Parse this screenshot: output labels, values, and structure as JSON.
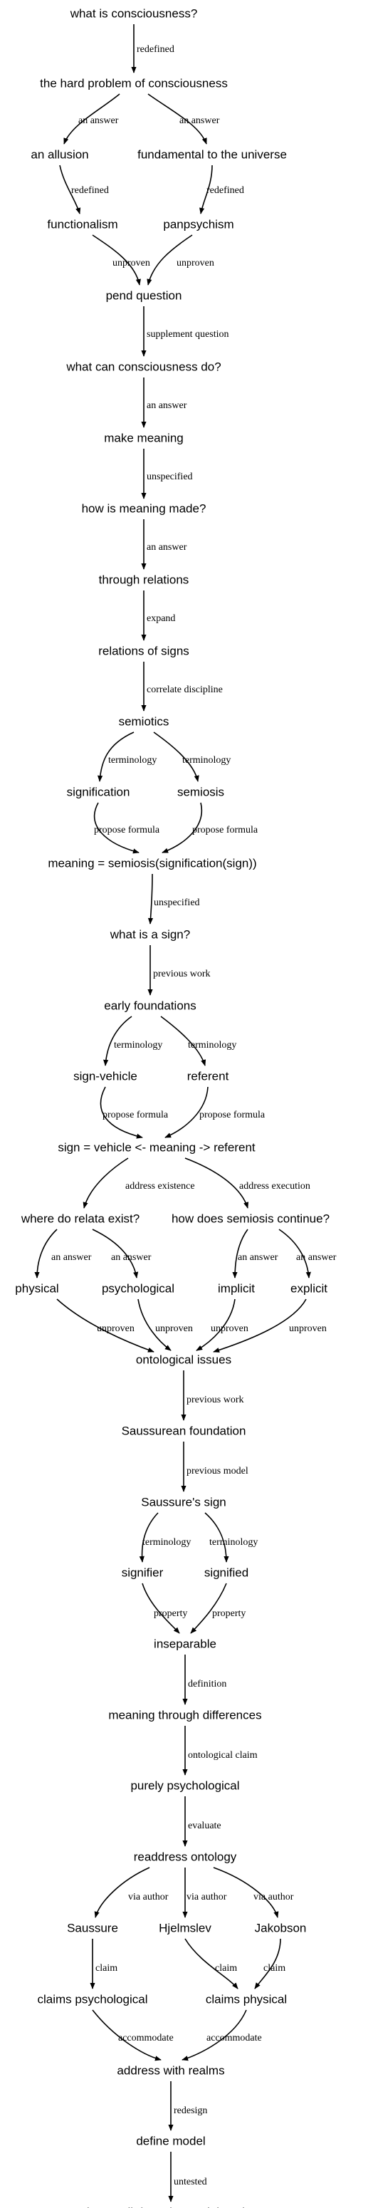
{
  "nodes": {
    "n1": "what is consciousness?",
    "n2": "the hard problem of consciousness",
    "n3": "an allusion",
    "n4": "fundamental to the universe",
    "n5": "functionalism",
    "n6": "panpsychism",
    "n7": "pend question",
    "n8": "what can consciousness do?",
    "n9": "make meaning",
    "n10": "how is meaning made?",
    "n11": "through relations",
    "n12": "relations of signs",
    "n13": "semiotics",
    "n14": "signification",
    "n15": "semiosis",
    "n16": "meaning = semiosis(signification(sign))",
    "n17": "what is a sign?",
    "n18": "early foundations",
    "n19": "sign-vehicle",
    "n20": "referent",
    "n21": "sign = vehicle <- meaning -> referent",
    "n22": "where do relata exist?",
    "n23": "how does semiosis continue?",
    "n24": "physical",
    "n25": "psychological",
    "n26": "implicit",
    "n27": "explicit",
    "n28": "ontological issues",
    "n29": "Saussurean foundation",
    "n30": "Saussure's sign",
    "n31": "signifier",
    "n32": "signified",
    "n33": "inseparable",
    "n34": "meaning through differences",
    "n35": "purely psychological",
    "n36": "readdress ontology",
    "n37": "Saussure",
    "n38": "Hjelmslev",
    "n39": "Jakobson",
    "n40": "claims psychological",
    "n41": "claims physical",
    "n42": "address with realms",
    "n43": "define model",
    "n44": "how well does the model work?"
  },
  "edges": [
    {
      "from": "n1",
      "to": "n2",
      "label": "redefined"
    },
    {
      "from": "n2",
      "to": "n3",
      "label": "an answer"
    },
    {
      "from": "n2",
      "to": "n4",
      "label": "an answer"
    },
    {
      "from": "n3",
      "to": "n5",
      "label": "redefined"
    },
    {
      "from": "n4",
      "to": "n6",
      "label": "redefined"
    },
    {
      "from": "n5",
      "to": "n7",
      "label": "unproven"
    },
    {
      "from": "n6",
      "to": "n7",
      "label": "unproven"
    },
    {
      "from": "n7",
      "to": "n8",
      "label": "supplement question"
    },
    {
      "from": "n8",
      "to": "n9",
      "label": "an answer"
    },
    {
      "from": "n9",
      "to": "n10",
      "label": "unspecified"
    },
    {
      "from": "n10",
      "to": "n11",
      "label": "an answer"
    },
    {
      "from": "n11",
      "to": "n12",
      "label": "expand"
    },
    {
      "from": "n12",
      "to": "n13",
      "label": "correlate discipline"
    },
    {
      "from": "n13",
      "to": "n14",
      "label": "terminology"
    },
    {
      "from": "n13",
      "to": "n15",
      "label": "terminology"
    },
    {
      "from": "n14",
      "to": "n16",
      "label": "propose formula"
    },
    {
      "from": "n15",
      "to": "n16",
      "label": "propose formula"
    },
    {
      "from": "n16",
      "to": "n17",
      "label": "unspecified"
    },
    {
      "from": "n17",
      "to": "n18",
      "label": "previous work"
    },
    {
      "from": "n18",
      "to": "n19",
      "label": "terminology"
    },
    {
      "from": "n18",
      "to": "n20",
      "label": "terminology"
    },
    {
      "from": "n19",
      "to": "n21",
      "label": "propose formula"
    },
    {
      "from": "n20",
      "to": "n21",
      "label": "propose formula"
    },
    {
      "from": "n21",
      "to": "n22",
      "label": "address existence"
    },
    {
      "from": "n21",
      "to": "n23",
      "label": "address execution"
    },
    {
      "from": "n22",
      "to": "n24",
      "label": "an answer"
    },
    {
      "from": "n22",
      "to": "n25",
      "label": "an answer"
    },
    {
      "from": "n23",
      "to": "n26",
      "label": "an answer"
    },
    {
      "from": "n23",
      "to": "n27",
      "label": "an answer"
    },
    {
      "from": "n24",
      "to": "n28",
      "label": "unproven"
    },
    {
      "from": "n25",
      "to": "n28",
      "label": "unproven"
    },
    {
      "from": "n26",
      "to": "n28",
      "label": "unproven"
    },
    {
      "from": "n27",
      "to": "n28",
      "label": "unproven"
    },
    {
      "from": "n28",
      "to": "n29",
      "label": "previous work"
    },
    {
      "from": "n29",
      "to": "n30",
      "label": "previous model"
    },
    {
      "from": "n30",
      "to": "n31",
      "label": "terminology"
    },
    {
      "from": "n30",
      "to": "n32",
      "label": "terminology"
    },
    {
      "from": "n31",
      "to": "n33",
      "label": "property"
    },
    {
      "from": "n32",
      "to": "n33",
      "label": "property"
    },
    {
      "from": "n33",
      "to": "n34",
      "label": "definition"
    },
    {
      "from": "n34",
      "to": "n35",
      "label": "ontological claim"
    },
    {
      "from": "n35",
      "to": "n36",
      "label": "evaluate"
    },
    {
      "from": "n36",
      "to": "n37",
      "label": "via author"
    },
    {
      "from": "n36",
      "to": "n38",
      "label": "via author"
    },
    {
      "from": "n36",
      "to": "n39",
      "label": "via author"
    },
    {
      "from": "n37",
      "to": "n40",
      "label": "claim"
    },
    {
      "from": "n38",
      "to": "n41",
      "label": "claim"
    },
    {
      "from": "n39",
      "to": "n41",
      "label": "claim"
    },
    {
      "from": "n40",
      "to": "n42",
      "label": "accommodate"
    },
    {
      "from": "n41",
      "to": "n42",
      "label": "accommodate"
    },
    {
      "from": "n42",
      "to": "n43",
      "label": "redesign"
    },
    {
      "from": "n43",
      "to": "n44",
      "label": "untested"
    }
  ]
}
